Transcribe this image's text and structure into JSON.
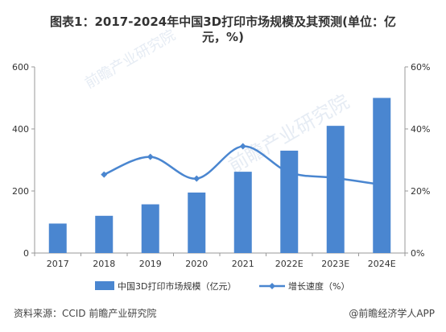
{
  "title_line1": "图表1：2017-2024年中国3D打印市场规模及其预测(单位：亿",
  "title_line2": "元，%)",
  "source": "资料来源：CCID 前瞻产业研究院",
  "brand": "@前瞻经济学人APP",
  "watermark": "前瞻产业研究院",
  "colors": {
    "bar": "#4a86d0",
    "line": "#4a86d0",
    "axis": "#999999",
    "text": "#333333"
  },
  "chart_data": {
    "type": "bar",
    "categories": [
      "2017",
      "2018",
      "2019",
      "2020",
      "2021",
      "2022E",
      "2023E",
      "2024E"
    ],
    "series": [
      {
        "name": "中国3D打印市场规模（亿元）",
        "type": "bar",
        "axis": "left",
        "values": [
          95,
          120,
          157,
          195,
          262,
          330,
          410,
          500
        ]
      },
      {
        "name": "增长速度（%）",
        "type": "line",
        "axis": "right",
        "values": [
          null,
          25.3,
          31,
          24,
          34.4,
          26,
          24.2,
          22
        ]
      }
    ],
    "y_left": {
      "ylim": [
        0,
        600
      ],
      "ticks": [
        0,
        200,
        400,
        600
      ]
    },
    "y_right": {
      "ylim": [
        0,
        60
      ],
      "ticks": [
        "0%",
        "20%",
        "40%",
        "60%"
      ]
    },
    "legend_position": "bottom"
  }
}
